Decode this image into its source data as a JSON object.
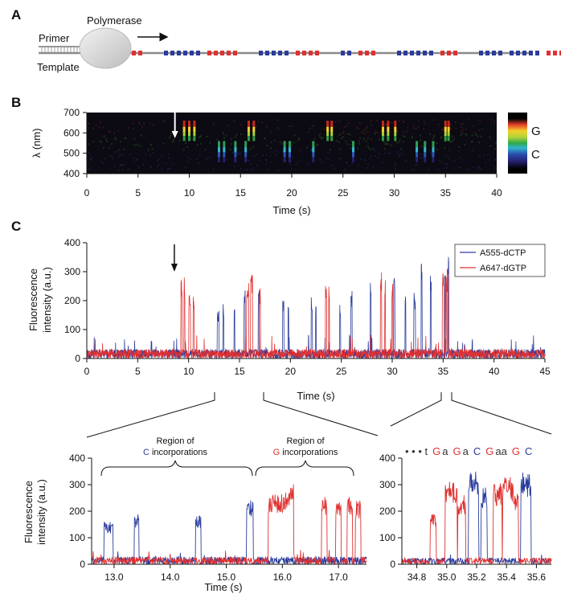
{
  "panels": {
    "a": {
      "letter": "A",
      "primer_label": "Primer",
      "template_label": "Template",
      "polymerase_label": "Polymerase",
      "colors": {
        "template_strand": "#8a8a8a",
        "c_nucleotide": "#2a3c9c",
        "g_nucleotide": "#e03030",
        "polymerase": "#d8d8d8"
      },
      "nucleotide_groups": [
        {
          "base": "G",
          "count": 5
        },
        {
          "base": "C",
          "count": 6
        },
        {
          "base": "G",
          "count": 5
        },
        {
          "base": "C",
          "count": 5
        },
        {
          "base": "G",
          "count": 4
        },
        {
          "base": "C",
          "count": 2
        },
        {
          "base": "G",
          "count": 3
        },
        {
          "base": "C",
          "count": 6
        },
        {
          "base": "G",
          "count": 3
        },
        {
          "base": "C",
          "count": 4
        },
        {
          "base": "C",
          "count": 5
        },
        {
          "base": "G",
          "count": 4
        },
        {
          "base": "C",
          "count": 4
        }
      ]
    },
    "b": {
      "letter": "B",
      "legend_g": "G",
      "legend_c": "C"
    },
    "c": {
      "letter": "C",
      "zoom1_annotation_c_line1": "Region of",
      "zoom1_annotation_c_base": "C",
      "zoom1_annotation_c_rest": " incorporations",
      "zoom1_annotation_g_line1": "Region of",
      "zoom1_annotation_g_base": "G",
      "zoom1_annotation_g_rest": " incorporations",
      "sequence_prefix": "• • • t",
      "sequence": [
        {
          "t": "G",
          "c": "g"
        },
        {
          "t": "a",
          "c": "k"
        },
        {
          "t": "G",
          "c": "g"
        },
        {
          "t": "a",
          "c": "k"
        },
        {
          "t": "C",
          "c": "c"
        },
        {
          "t": "G",
          "c": "g"
        },
        {
          "t": "aa",
          "c": "k"
        },
        {
          "t": "G",
          "c": "g"
        },
        {
          "t": "C",
          "c": "c"
        }
      ]
    }
  },
  "chart_data": [
    {
      "id": "spectral-image",
      "type": "heatmap",
      "xlabel": "Time (s)",
      "ylabel": "λ (nm)",
      "xlim": [
        0,
        40
      ],
      "ylim": [
        400,
        700
      ],
      "xticks": [
        0,
        5,
        10,
        15,
        20,
        25,
        30,
        35,
        40
      ],
      "yticks": [
        400,
        500,
        600,
        700
      ],
      "g_channel_events_s": [
        9.5,
        10.0,
        10.5,
        15.8,
        16.3,
        23.5,
        23.9,
        28.9,
        29.4,
        30.1,
        35.0,
        35.3
      ],
      "c_channel_events_s": [
        12.9,
        13.4,
        14.5,
        15.5,
        19.3,
        19.8,
        22.1,
        26.0,
        32.2,
        33.0,
        33.8
      ],
      "arrow_time_s": 8.6,
      "colorbar": true
    },
    {
      "id": "fluorescence-trace",
      "type": "line",
      "xlabel": "Time (s)",
      "ylabel": "Fluorescence intensity (a.u.)",
      "xlim": [
        0,
        45
      ],
      "ylim": [
        0,
        400
      ],
      "xticks": [
        0,
        5,
        10,
        15,
        20,
        25,
        30,
        35,
        40,
        45
      ],
      "yticks": [
        0,
        100,
        200,
        300,
        400
      ],
      "legend_position": "top-right",
      "arrow_time_s": 8.6,
      "series": [
        {
          "name": "A555-dCTP",
          "color": "#2a3c9c",
          "bursts": [
            {
              "t": 12.9,
              "w": 0.08,
              "h": 165
            },
            {
              "t": 13.4,
              "w": 0.05,
              "h": 190
            },
            {
              "t": 14.5,
              "w": 0.05,
              "h": 185
            },
            {
              "t": 15.5,
              "w": 0.06,
              "h": 240
            },
            {
              "t": 16.9,
              "w": 0.05,
              "h": 240
            },
            {
              "t": 19.3,
              "w": 0.06,
              "h": 210
            },
            {
              "t": 19.8,
              "w": 0.05,
              "h": 200
            },
            {
              "t": 22.1,
              "w": 0.06,
              "h": 215
            },
            {
              "t": 22.5,
              "w": 0.04,
              "h": 190
            },
            {
              "t": 24.9,
              "w": 0.05,
              "h": 200
            },
            {
              "t": 26.0,
              "w": 0.07,
              "h": 245
            },
            {
              "t": 27.9,
              "w": 0.05,
              "h": 285
            },
            {
              "t": 30.2,
              "w": 0.06,
              "h": 285
            },
            {
              "t": 31.3,
              "w": 0.05,
              "h": 250
            },
            {
              "t": 32.2,
              "w": 0.08,
              "h": 230
            },
            {
              "t": 32.9,
              "w": 0.05,
              "h": 330
            },
            {
              "t": 33.8,
              "w": 0.05,
              "h": 290
            },
            {
              "t": 35.2,
              "w": 0.05,
              "h": 350
            },
            {
              "t": 35.5,
              "w": 0.05,
              "h": 350
            }
          ]
        },
        {
          "name": "A647-dGTP",
          "color": "#e03030",
          "bursts": [
            {
              "t": 9.3,
              "w": 0.06,
              "h": 285
            },
            {
              "t": 9.6,
              "w": 0.05,
              "h": 280
            },
            {
              "t": 10.1,
              "w": 0.08,
              "h": 220
            },
            {
              "t": 10.5,
              "w": 0.06,
              "h": 240
            },
            {
              "t": 15.8,
              "w": 0.12,
              "h": 260
            },
            {
              "t": 16.2,
              "w": 0.1,
              "h": 305
            },
            {
              "t": 17.0,
              "w": 0.06,
              "h": 255
            },
            {
              "t": 23.5,
              "w": 0.06,
              "h": 280
            },
            {
              "t": 23.8,
              "w": 0.05,
              "h": 280
            },
            {
              "t": 28.9,
              "w": 0.07,
              "h": 300
            },
            {
              "t": 29.3,
              "w": 0.05,
              "h": 280
            },
            {
              "t": 30.0,
              "w": 0.06,
              "h": 280
            },
            {
              "t": 35.0,
              "w": 0.1,
              "h": 305
            },
            {
              "t": 35.4,
              "w": 0.08,
              "h": 310
            }
          ]
        }
      ]
    },
    {
      "id": "zoom-12-17",
      "type": "line",
      "xlabel": "Time (s)",
      "ylabel": "Fluorescence intensity (a.u.)",
      "xlim": [
        12.6,
        17.5
      ],
      "ylim": [
        0,
        400
      ],
      "xticks": [
        13.0,
        14.0,
        15.0,
        16.0,
        17.0
      ],
      "xtick_labels": [
        "13.0",
        "14.0",
        "15.0",
        "16.0",
        "17.0"
      ],
      "yticks": [
        0,
        100,
        200,
        300,
        400
      ],
      "series": [
        {
          "name": "A555-dCTP",
          "color": "#2a3c9c",
          "bursts": [
            {
              "t": 12.9,
              "w": 0.08,
              "h": 160
            },
            {
              "t": 13.4,
              "w": 0.04,
              "h": 190
            },
            {
              "t": 14.5,
              "w": 0.05,
              "h": 185
            },
            {
              "t": 15.42,
              "w": 0.06,
              "h": 240
            }
          ]
        },
        {
          "name": "A647-dGTP",
          "color": "#e03030",
          "bursts": [
            {
              "t": 15.95,
              "w": 0.2,
              "h": 270
            },
            {
              "t": 16.15,
              "w": 0.05,
              "h": 305
            },
            {
              "t": 16.75,
              "w": 0.05,
              "h": 255
            },
            {
              "t": 17.0,
              "w": 0.05,
              "h": 250
            },
            {
              "t": 17.2,
              "w": 0.05,
              "h": 260
            },
            {
              "t": 17.35,
              "w": 0.05,
              "h": 240
            }
          ]
        }
      ]
    },
    {
      "id": "zoom-34-35",
      "type": "line",
      "xlim": [
        34.7,
        35.7
      ],
      "ylim": [
        0,
        400
      ],
      "xticks": [
        34.8,
        35.0,
        35.2,
        35.4,
        35.6
      ],
      "xtick_labels": [
        "34.8",
        "35.0",
        "35.2",
        "35.4",
        "35.6"
      ],
      "yticks": [
        0,
        100,
        200,
        300,
        400
      ],
      "series": [
        {
          "name": "A555-dCTP",
          "color": "#2a3c9c",
          "bursts": [
            {
              "t": 35.18,
              "w": 0.035,
              "h": 350
            },
            {
              "t": 35.25,
              "w": 0.02,
              "h": 290
            },
            {
              "t": 35.53,
              "w": 0.035,
              "h": 350
            }
          ]
        },
        {
          "name": "A647-dGTP",
          "color": "#e03030",
          "bursts": [
            {
              "t": 34.91,
              "w": 0.02,
              "h": 195
            },
            {
              "t": 35.03,
              "w": 0.04,
              "h": 310
            },
            {
              "t": 35.1,
              "w": 0.025,
              "h": 260
            },
            {
              "t": 35.34,
              "w": 0.03,
              "h": 305
            },
            {
              "t": 35.41,
              "w": 0.035,
              "h": 330
            },
            {
              "t": 35.46,
              "w": 0.02,
              "h": 280
            }
          ]
        }
      ]
    }
  ]
}
